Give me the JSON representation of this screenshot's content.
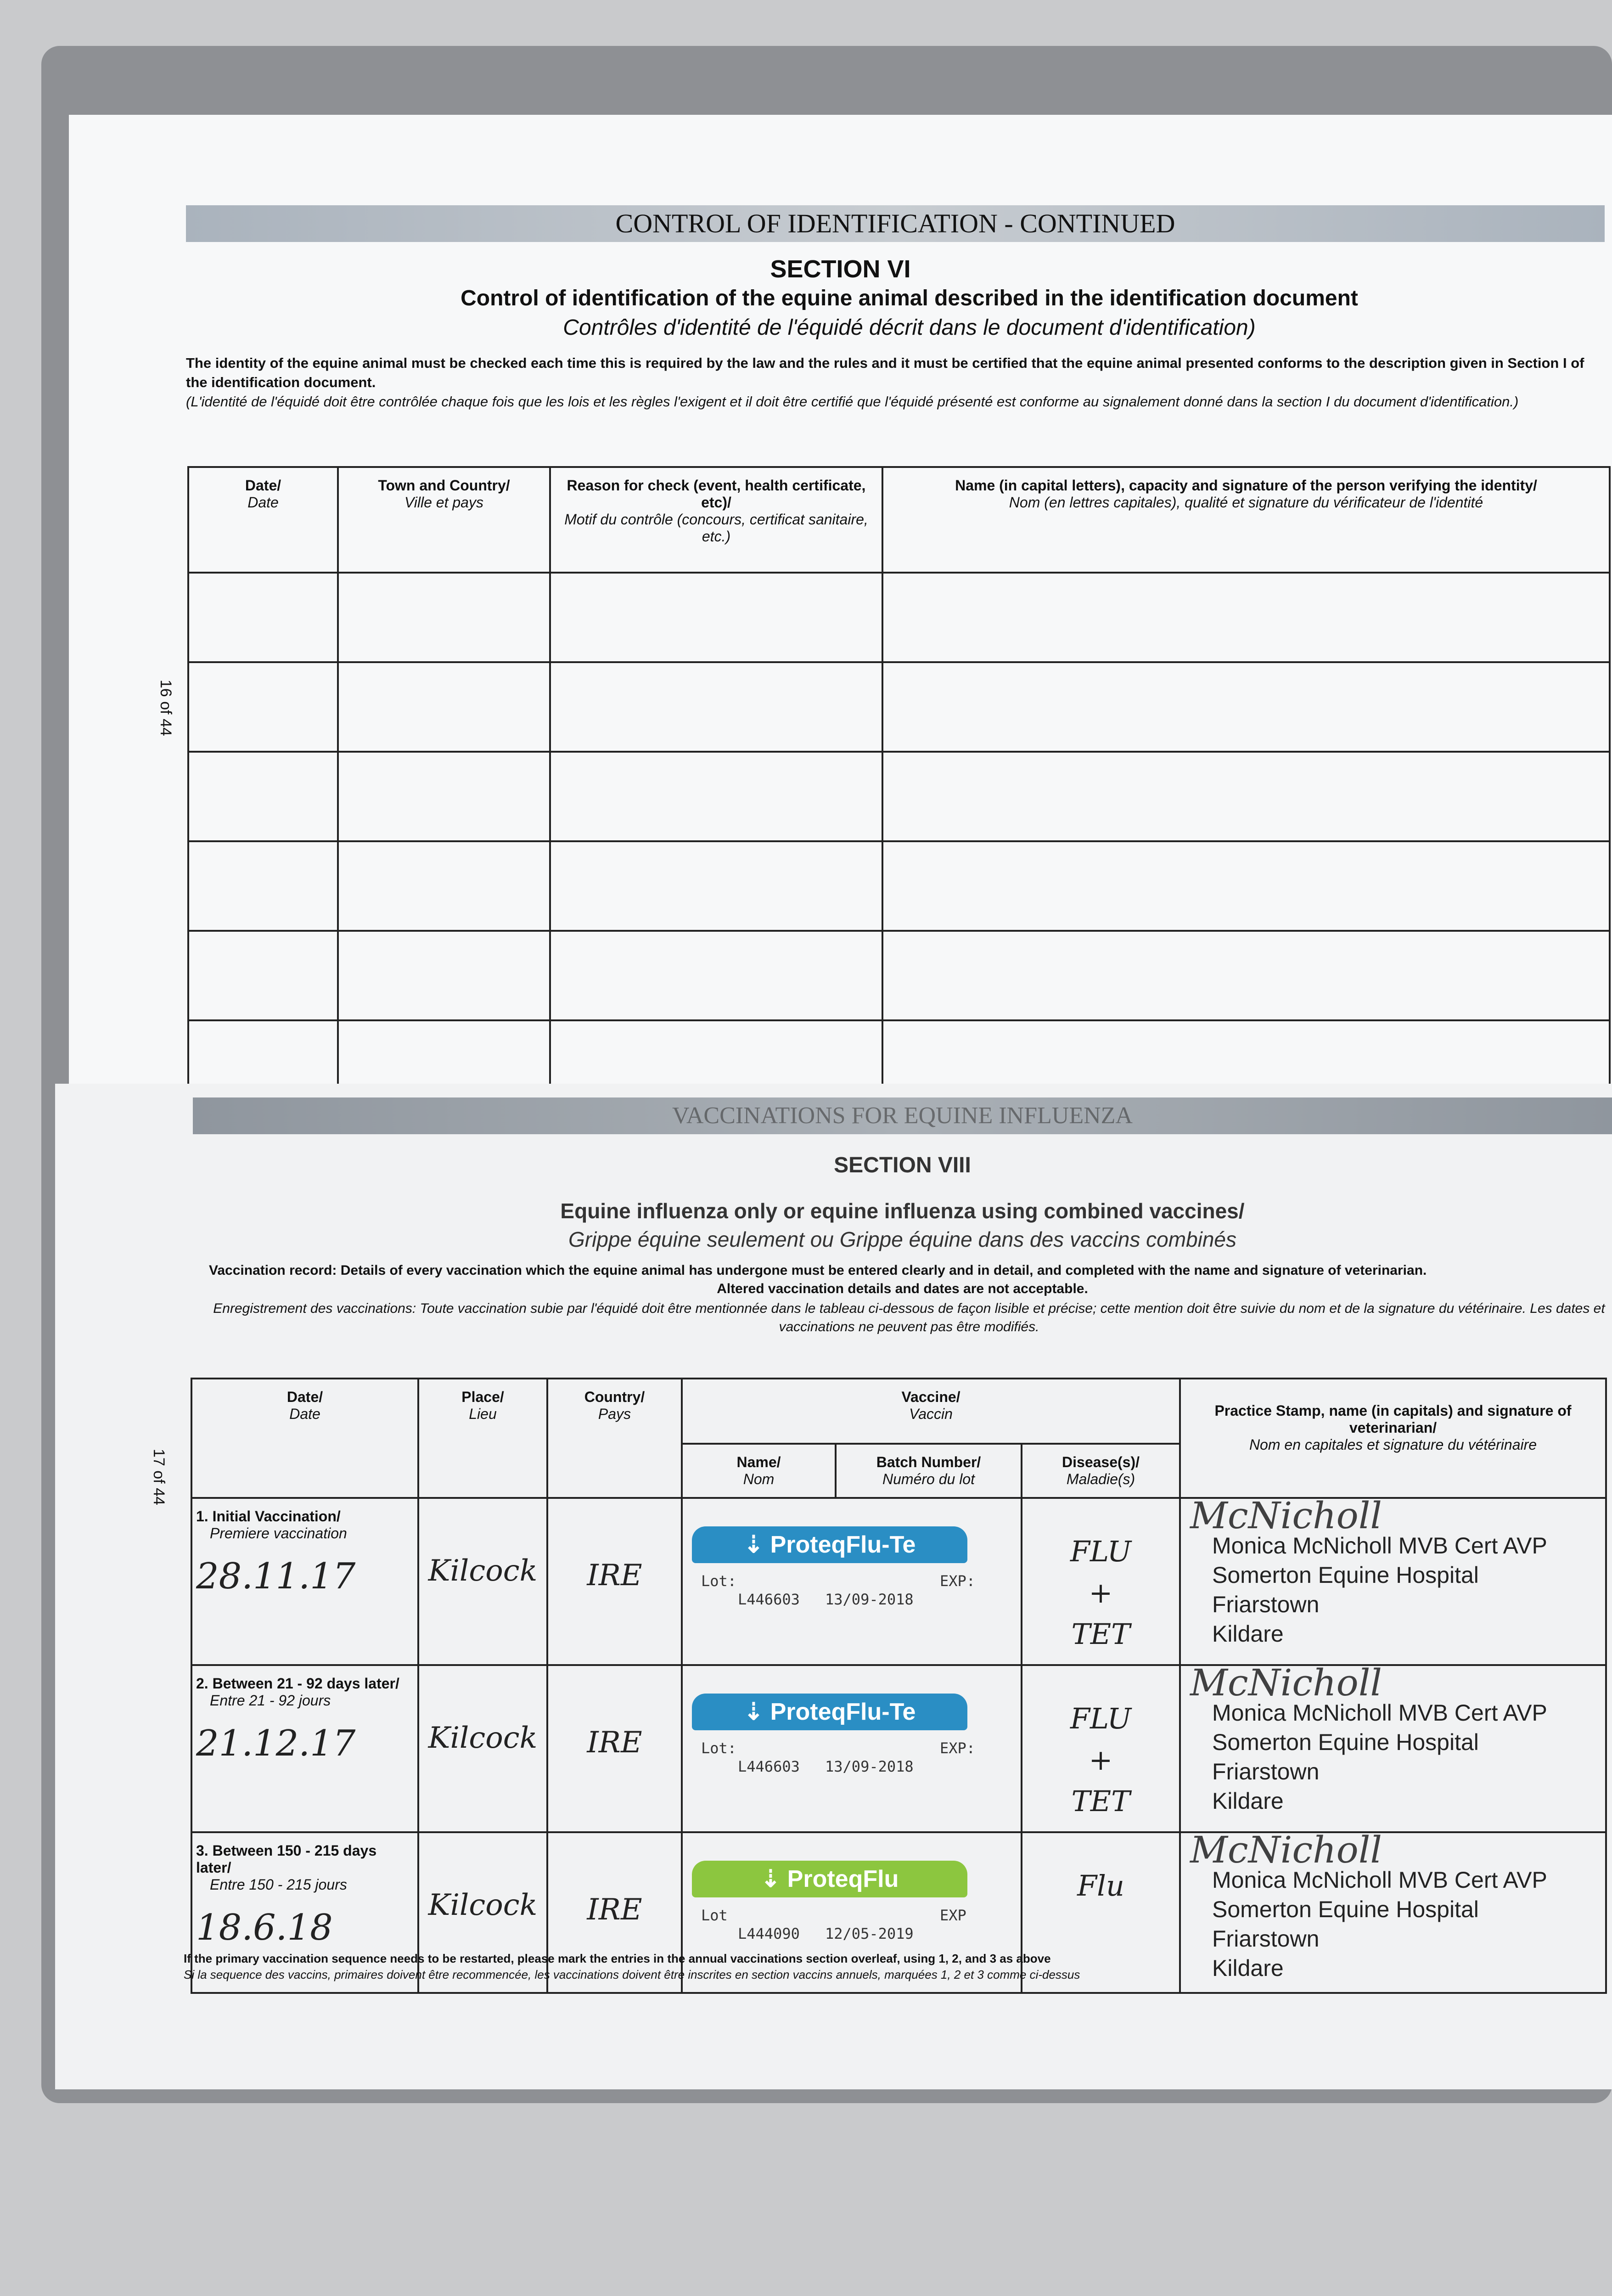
{
  "section6": {
    "banner": "CONTROL OF IDENTIFICATION - CONTINUED",
    "section": "SECTION VI",
    "title": "Control of identification of the equine animal described in the identification document",
    "title_fr": "Contrôles d'identité de l'équidé décrit dans le document d'identification)",
    "para": "The identity of the equine animal must be checked each time this is required by the law and the rules and it must be certified that the equine animal presented conforms to the description given in Section I of the identification document.",
    "para_fr": "(L'identité de l'équidé doit être contrôlée chaque fois que les lois et les règles l'exigent et il doit être certifié que l'équidé présenté est conforme au signalement donné dans la section I du document d'identification.)",
    "page_no": "16 of 44",
    "headers": [
      {
        "en": "Date/",
        "fr": "Date"
      },
      {
        "en": "Town and Country/",
        "fr": "Ville et pays"
      },
      {
        "en": "Reason for check (event, health certificate, etc)/",
        "fr": "Motif du contrôle (concours, certificat sanitaire, etc.)"
      },
      {
        "en": "Name (in capital letters), capacity and signature of the person verifying the identity/",
        "fr": "Nom (en lettres capitales), qualité et signature du vérificateur de l'identité"
      }
    ]
  },
  "section8": {
    "banner": "VACCINATIONS FOR EQUINE INFLUENZA",
    "section": "SECTION VIII",
    "title": "Equine influenza only or equine influenza using combined vaccines/",
    "title_fr": "Grippe équine seulement ou Grippe équine dans des vaccins combinés",
    "para": "Vaccination record: Details of every vaccination which the equine animal has undergone must be entered clearly and in detail, and completed with the name and signature of veterinarian.",
    "para2": "Altered vaccination details and dates are not acceptable.",
    "para_fr": "Enregistrement des vaccinations: Toute vaccination subie par l'équidé doit être mentionnée dans le tableau ci-dessous de façon lisible et précise; cette mention doit être suivie du nom et de la signature du vétérinaire. Les dates et vaccinations ne peuvent pas être modifiés.",
    "page_no": "17 of 44",
    "headers": {
      "date": {
        "en": "Date/",
        "fr": "Date"
      },
      "place": {
        "en": "Place/",
        "fr": "Lieu"
      },
      "country": {
        "en": "Country/",
        "fr": "Pays"
      },
      "vaccine": {
        "en": "Vaccine/",
        "fr": "Vaccin"
      },
      "name": {
        "en": "Name/",
        "fr": "Nom"
      },
      "batch": {
        "en": "Batch Number/",
        "fr": "Numéro du lot"
      },
      "disease": {
        "en": "Disease(s)/",
        "fr": "Maladie(s)"
      },
      "vet": {
        "en": "Practice Stamp, name (in capitals) and signature of veterinarian/",
        "fr": "Nom en capitales et signature du vétérinaire"
      }
    },
    "rows": [
      {
        "label": "1. Initial Vaccination/",
        "label_fr": "Premiere vaccination",
        "date": "28.11.17",
        "place": "Kilcock",
        "country": "IRE",
        "vaccine": "ProteqFlu-Te",
        "lot_label": "Lot:",
        "exp_label": "EXP:",
        "lot": "L446603",
        "exp": "13/09-2018",
        "disease": "FLU + TET",
        "signature": "McNicholl",
        "stamp": [
          "Monica McNicholl MVB Cert AVP",
          "Somerton Equine Hospital",
          "Friarstown",
          "Kildare"
        ]
      },
      {
        "label": "2. Between 21 - 92 days later/",
        "label_fr": "Entre 21 - 92 jours",
        "date": "21.12.17",
        "place": "Kilcock",
        "country": "IRE",
        "vaccine": "ProteqFlu-Te",
        "lot_label": "Lot:",
        "exp_label": "EXP:",
        "lot": "L446603",
        "exp": "13/09-2018",
        "disease": "FLU + TET",
        "signature": "McNicholl",
        "stamp": [
          "Monica McNicholl MVB Cert AVP",
          "Somerton Equine Hospital",
          "Friarstown",
          "Kildare"
        ]
      },
      {
        "label": "3. Between 150 - 215 days later/",
        "label_fr": "Entre 150 - 215 jours",
        "date": "18.6.18",
        "place": "Kilcock",
        "country": "IRE",
        "vaccine": "ProteqFlu",
        "lot_label": "Lot",
        "exp_label": "EXP",
        "lot": "L444090",
        "exp": "12/05-2019",
        "disease": "Flu",
        "signature": "McNicholl",
        "stamp": [
          "Monica McNicholl MVB Cert AVP",
          "Somerton Equine Hospital",
          "Friarstown",
          "Kildare"
        ]
      }
    ],
    "footer": "If the primary vaccination sequence needs to be restarted, please mark the entries in the annual vaccinations section overleaf, using 1, 2, and 3 as above",
    "footer_fr": "Si la sequence des vaccins, primaires doivent être recommencée, les vaccinations doivent être inscrites en section vaccins annuels, marquées 1, 2 et 3 comme ci-dessus"
  },
  "colors": {
    "flu_te": "#2a8ec4",
    "flu": "#8cc63f"
  }
}
